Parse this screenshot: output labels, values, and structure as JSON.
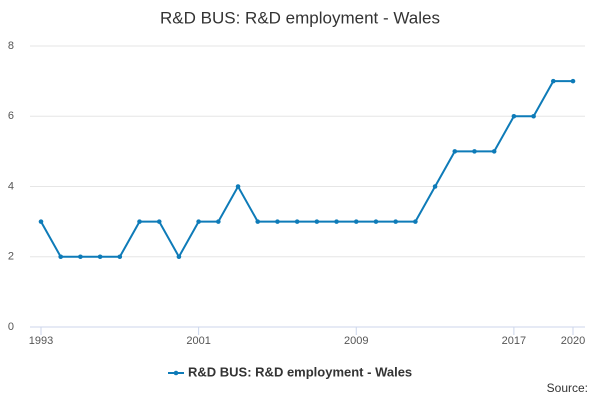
{
  "chart_data": {
    "type": "line",
    "title": "R&D BUS: R&D employment - Wales",
    "x": [
      1993,
      1994,
      1995,
      1996,
      1997,
      1998,
      1999,
      2000,
      2001,
      2002,
      2003,
      2004,
      2005,
      2006,
      2007,
      2008,
      2009,
      2010,
      2011,
      2012,
      2013,
      2014,
      2015,
      2016,
      2017,
      2018,
      2019,
      2020
    ],
    "series": [
      {
        "name": "R&D BUS: R&D employment - Wales",
        "color": "#0e7bb8",
        "values": [
          3,
          2,
          2,
          2,
          2,
          3,
          3,
          2,
          3,
          3,
          4,
          3,
          3,
          3,
          3,
          3,
          3,
          3,
          3,
          3,
          4,
          5,
          5,
          5,
          6,
          6,
          7,
          7
        ]
      }
    ],
    "xlim": [
      1993,
      2020
    ],
    "xticks": [
      1993,
      2001,
      2009,
      2017,
      2020
    ],
    "ylim": [
      0,
      8
    ],
    "yticks": [
      0,
      2,
      4,
      6,
      8
    ],
    "grid": true,
    "legend": "bottom",
    "source_label": "Source:"
  }
}
